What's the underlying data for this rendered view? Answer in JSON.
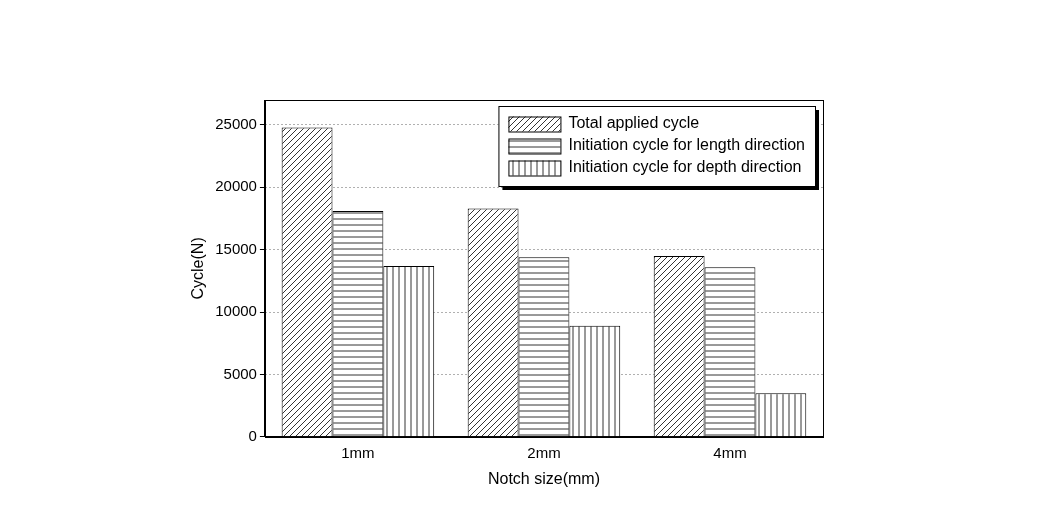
{
  "chart_data": {
    "type": "bar",
    "x_label": "Notch size(mm)",
    "y_label": "Cycle(N)",
    "categories": [
      "1mm",
      "2mm",
      "4mm"
    ],
    "series": [
      {
        "name": "Total applied cycle",
        "color": "#000000",
        "values": [
          24800,
          18300,
          14500
        ]
      },
      {
        "name": "Initiation cycle for length direction",
        "color": "#000000",
        "values": [
          18100,
          14400,
          13600
        ]
      },
      {
        "name": "Initiation cycle for depth direction",
        "color": "#000000",
        "values": [
          13700,
          8900,
          3500
        ]
      }
    ],
    "ylim": [
      0,
      27000
    ],
    "yticks": [
      0,
      5000,
      10000,
      15000,
      20000,
      25000
    ],
    "grid": true,
    "legend": "upper right"
  }
}
